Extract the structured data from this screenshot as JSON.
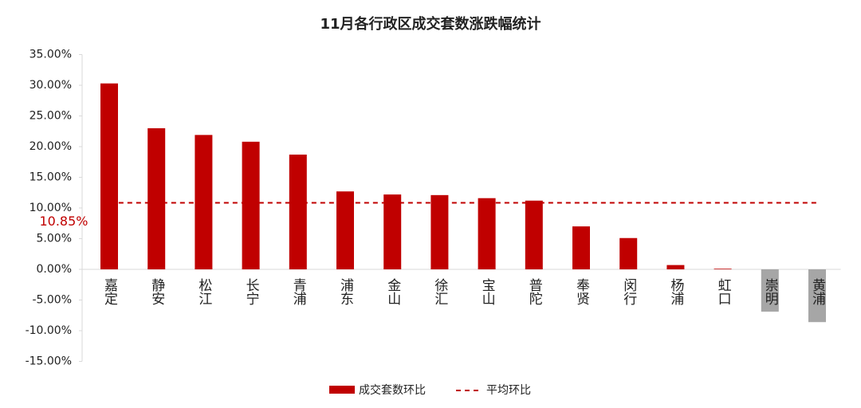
{
  "chart_data": {
    "type": "bar",
    "title": "11月各行政区成交套数涨跌幅统计",
    "categories": [
      "嘉定",
      "静安",
      "松江",
      "长宁",
      "青浦",
      "浦东",
      "金山",
      "徐汇",
      "宝山",
      "普陀",
      "奉贤",
      "闵行",
      "杨浦",
      "虹口",
      "崇明",
      "黄浦"
    ],
    "series": [
      {
        "name": "成交套数环比",
        "color": "#c00000",
        "negative_color": "#a6a6a6",
        "values": [
          30.3,
          23.0,
          21.9,
          20.8,
          18.7,
          12.7,
          12.2,
          12.1,
          11.6,
          11.2,
          7.0,
          5.1,
          0.7,
          0.1,
          -6.9,
          -8.6
        ]
      }
    ],
    "average": {
      "name": "平均环比",
      "value": 10.85,
      "label": "10.85%",
      "color": "#c00000"
    },
    "ylim": [
      -15,
      35
    ],
    "yticks": [
      {
        "value": -15,
        "label": "-15.00%"
      },
      {
        "value": -10,
        "label": "-10.00%"
      },
      {
        "value": -5,
        "label": "-5.00%"
      },
      {
        "value": 0,
        "label": "0.00%"
      },
      {
        "value": 5,
        "label": "5.00%"
      },
      {
        "value": 10,
        "label": "10.00%"
      },
      {
        "value": 15,
        "label": "15.00%"
      },
      {
        "value": 20,
        "label": "20.00%"
      },
      {
        "value": 25,
        "label": "25.00%"
      },
      {
        "value": 30,
        "label": "30.00%"
      },
      {
        "value": 35,
        "label": "35.00%"
      }
    ],
    "grid": false
  }
}
